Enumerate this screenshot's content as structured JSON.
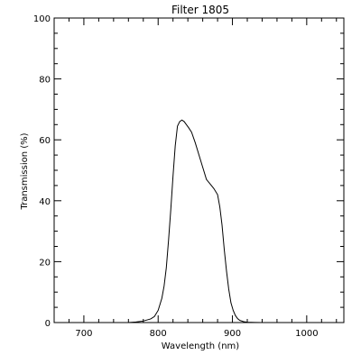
{
  "chart_data": {
    "type": "line",
    "title": "Filter 1805",
    "xlabel": "Wavelength (nm)",
    "ylabel": "Transmission (%)",
    "xlim": [
      660,
      1050
    ],
    "ylim": [
      0,
      100
    ],
    "grid": false,
    "x_ticks": [
      700,
      800,
      900,
      1000
    ],
    "x_tick_labels": [
      "700",
      "800",
      "900",
      "1000"
    ],
    "y_ticks": [
      0,
      20,
      40,
      60,
      80,
      100
    ],
    "y_tick_labels": [
      "0",
      "20",
      "40",
      "60",
      "80",
      "100"
    ],
    "x_minor_step": 20,
    "y_minor_step": 5,
    "series": [
      {
        "line_color": "#000000",
        "x": [
          760,
          770,
          780,
          790,
          795,
          800,
          805,
          808,
          811,
          814,
          817,
          820,
          823,
          826,
          829,
          832,
          835,
          838,
          841,
          845,
          850,
          855,
          860,
          865,
          870,
          875,
          880,
          883,
          886,
          889,
          892,
          895,
          898,
          901,
          904,
          907,
          910,
          915,
          920,
          930,
          940,
          950,
          960,
          970
        ],
        "y": [
          0,
          0.2,
          0.5,
          1.2,
          2.0,
          4.0,
          8.0,
          12.0,
          18.0,
          27.0,
          37.0,
          48.0,
          58.0,
          64.5,
          66.0,
          66.5,
          66.0,
          65.0,
          64.0,
          62.5,
          59.0,
          55.0,
          51.0,
          47.0,
          45.5,
          44.0,
          42.0,
          38.0,
          32.0,
          24.0,
          17.0,
          11.0,
          6.5,
          4.0,
          2.3,
          1.3,
          0.7,
          0.3,
          0.1,
          0.05,
          0,
          0,
          0,
          0
        ]
      }
    ]
  }
}
